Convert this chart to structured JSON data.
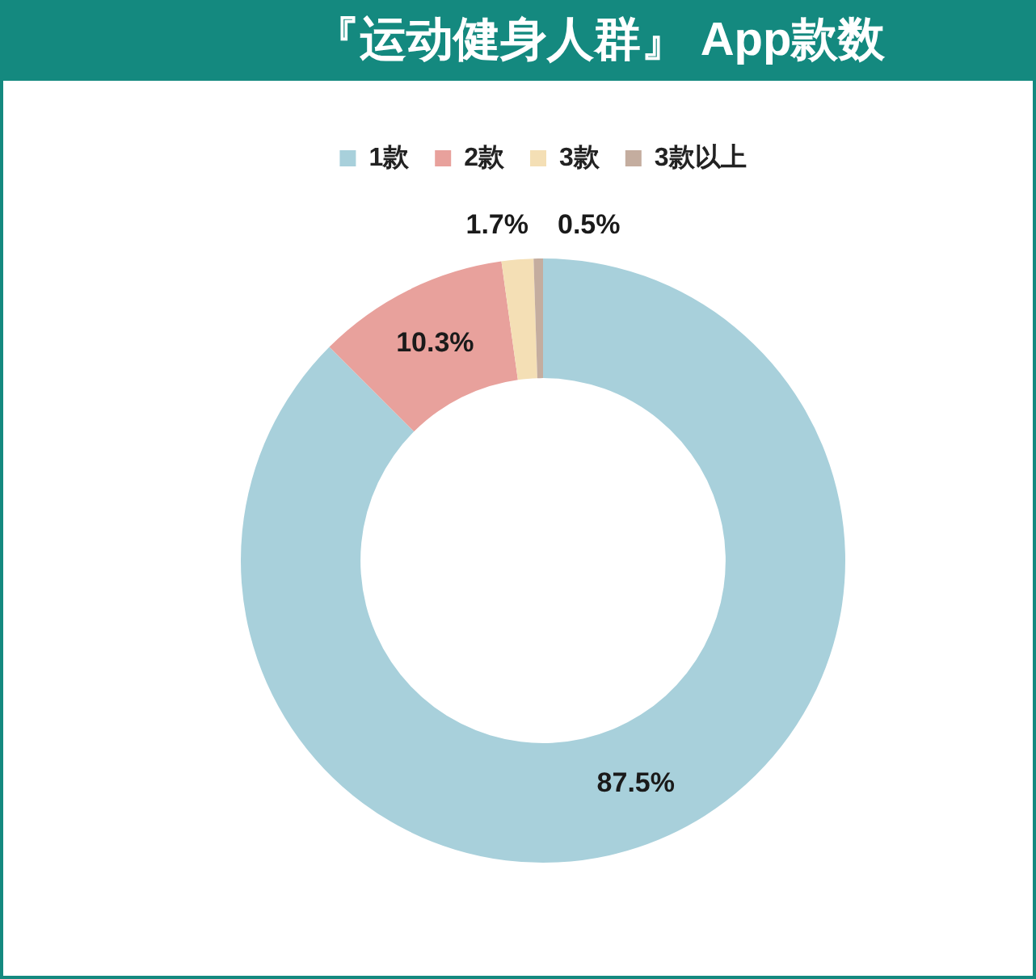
{
  "chart_data": {
    "type": "donut",
    "title": "『运动健身人群』 App款数",
    "categories": [
      "1款",
      "2款",
      "3款",
      "3款以上"
    ],
    "values": [
      87.5,
      10.3,
      1.7,
      0.5
    ],
    "colors": [
      "#a8d0db",
      "#e8a19c",
      "#f4dfb5",
      "#c4ad9f"
    ],
    "value_labels": [
      "87.5%",
      "10.3%",
      "1.7%",
      "0.5%"
    ],
    "legend": "top"
  }
}
